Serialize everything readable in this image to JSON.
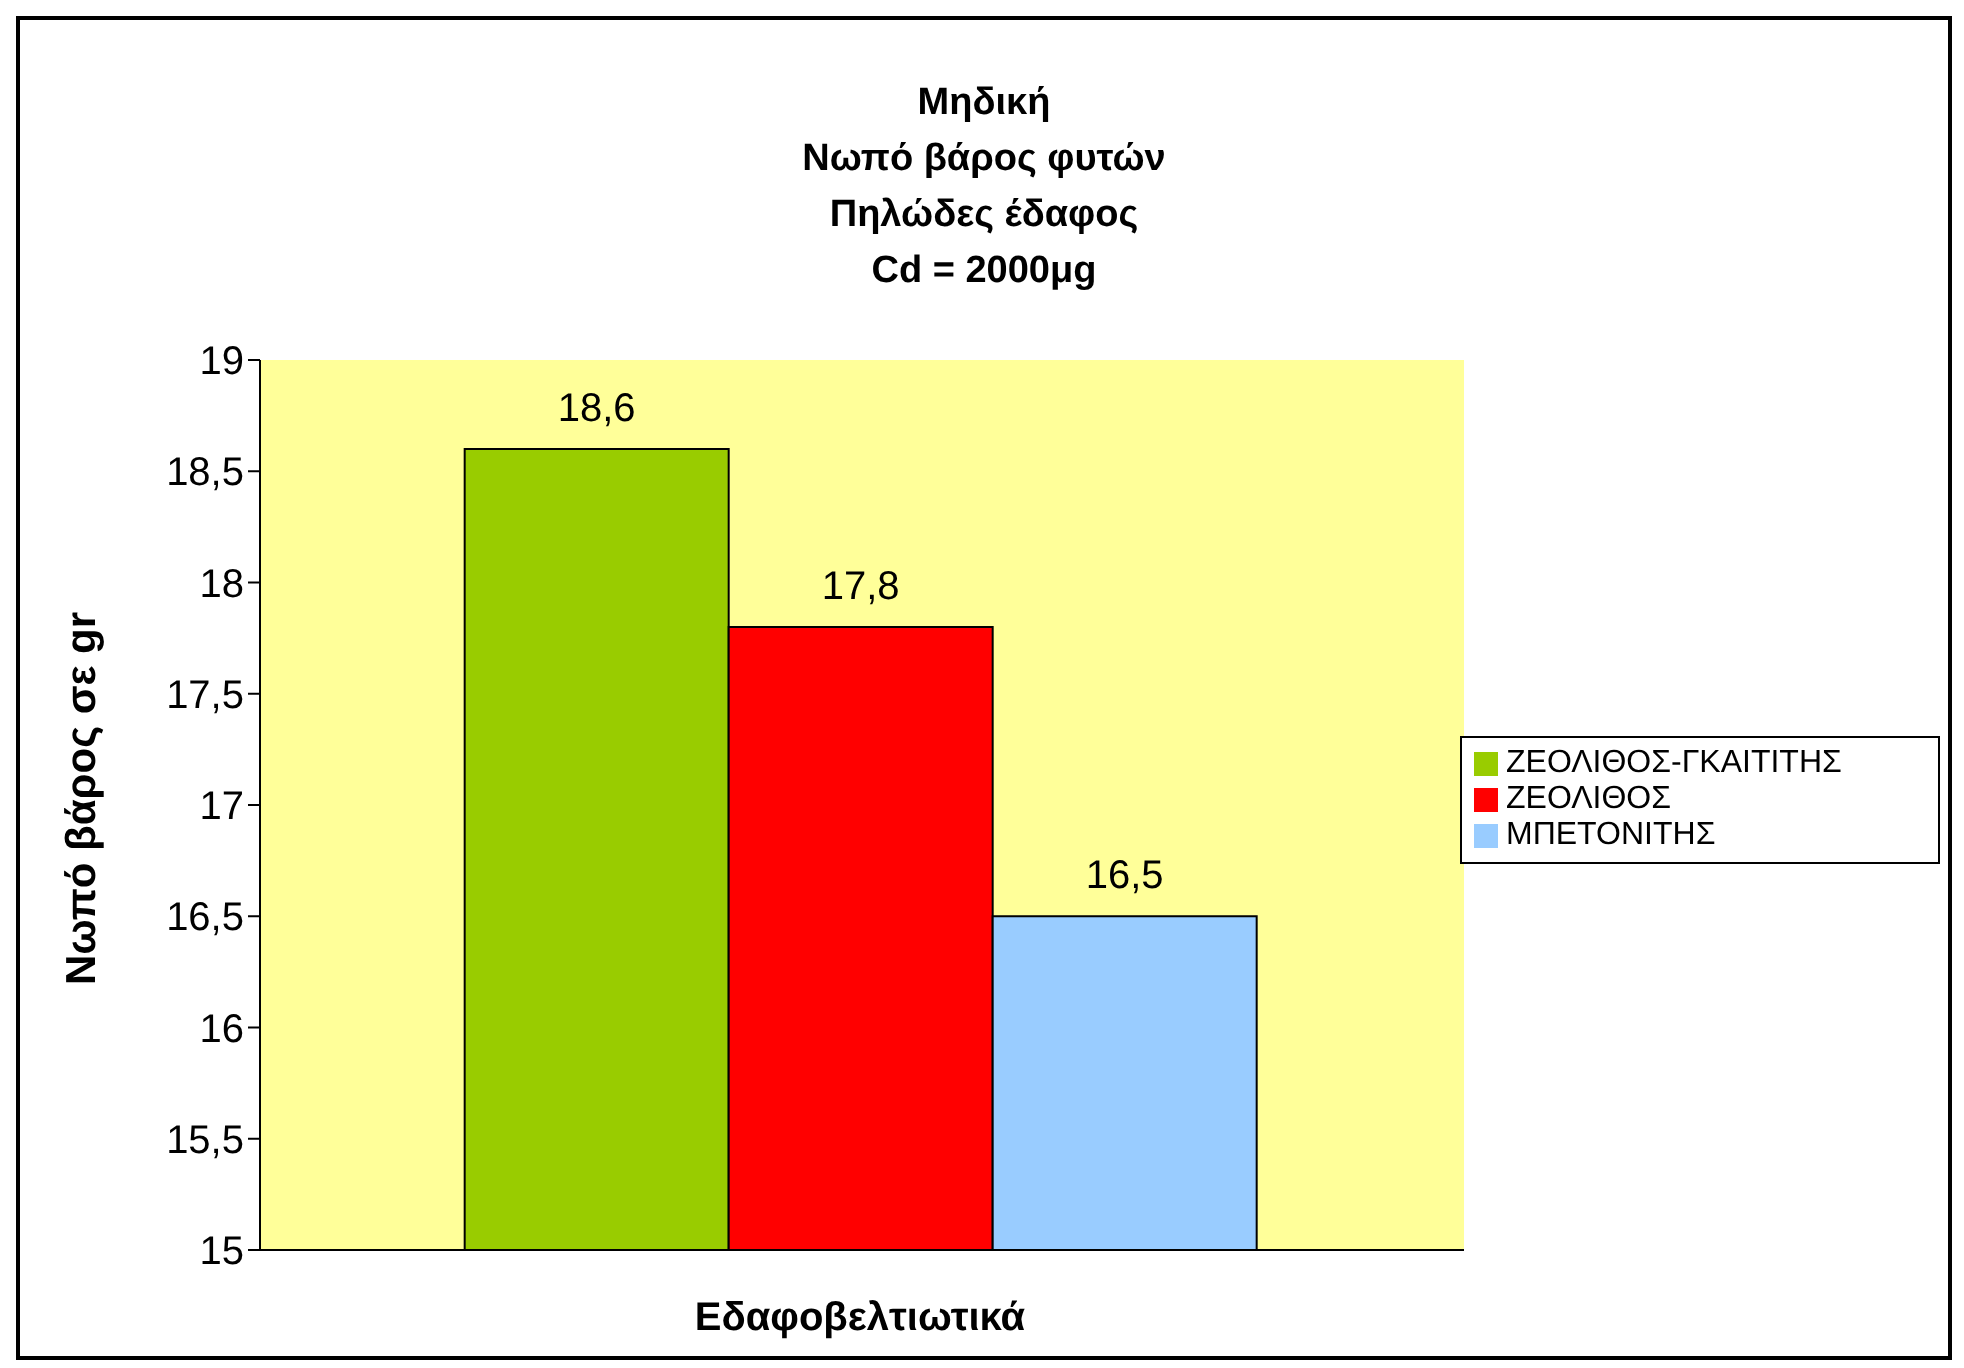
{
  "chart_data": {
    "type": "bar",
    "title": "Μηδική\nΝωπό βάρος φυτών\nΠηλώδες έδαφος\nCd = 2000μg",
    "xlabel": "Εδαφοβελτιωτικά",
    "ylabel": "Νωπό βάρος σε gr",
    "categories": [
      null
    ],
    "series": [
      {
        "name": "ΖΕΟΛΙΘΟΣ-ΓΚΑΙΤΙΤΗΣ",
        "color": "#99cc00",
        "values": [
          18.6
        ],
        "value_labels": [
          "18,6"
        ]
      },
      {
        "name": "ΖΕΟΛΙΘΟΣ",
        "color": "#ff0000",
        "values": [
          17.8
        ],
        "value_labels": [
          "17,8"
        ]
      },
      {
        "name": "ΜΠΕΤΟΝΙΤΗΣ",
        "color": "#99ccff",
        "values": [
          16.5
        ],
        "value_labels": [
          "16,5"
        ]
      }
    ],
    "ylim": [
      15,
      19
    ],
    "yticks": [
      15,
      {
        "value": 15.5,
        "label": "15,5"
      },
      16,
      {
        "value": 16.5,
        "label": "16,5"
      },
      17,
      {
        "value": 17.5,
        "label": "17,5"
      },
      18,
      {
        "value": 18.5,
        "label": "18,5"
      },
      19
    ],
    "grid": false,
    "legend": "right"
  }
}
